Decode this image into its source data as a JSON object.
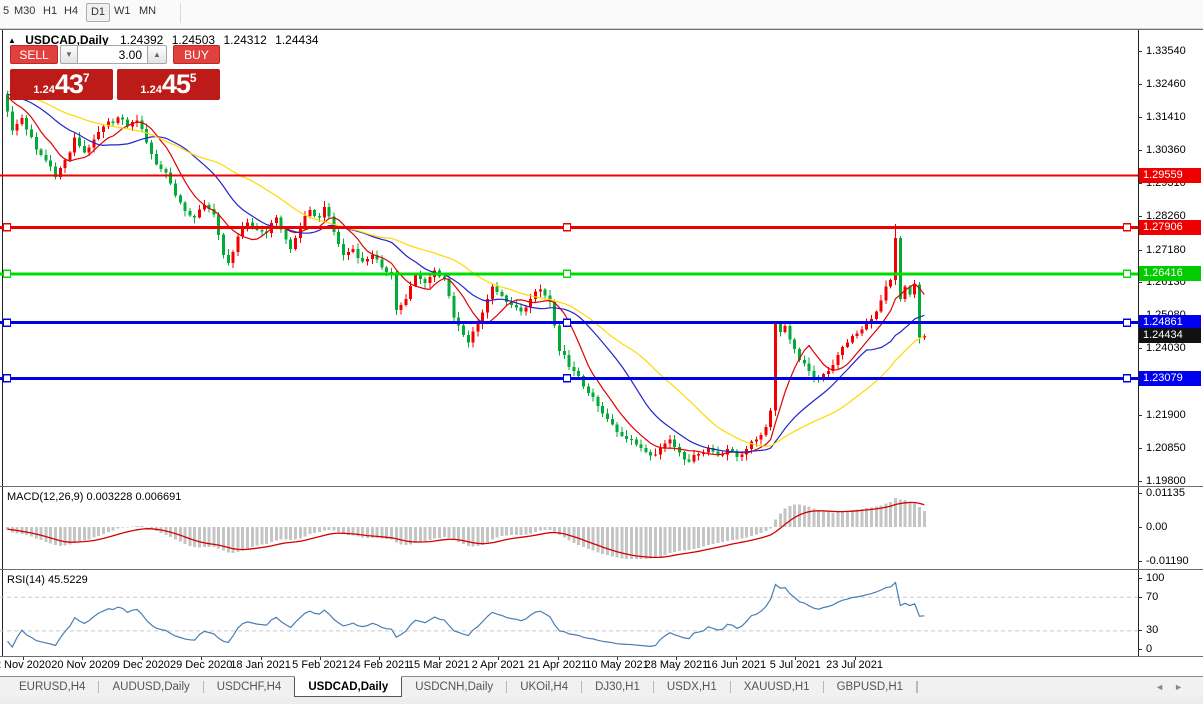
{
  "toolbar": {
    "timeframes": [
      {
        "label": "5",
        "active": false
      },
      {
        "label": "M30",
        "active": false
      },
      {
        "label": "H1",
        "active": false
      },
      {
        "label": "H4",
        "active": false
      },
      {
        "label": "D1",
        "active": true
      },
      {
        "label": "W1",
        "active": false
      },
      {
        "label": "MN",
        "active": false
      }
    ]
  },
  "chart_header": {
    "collapse_icon": "▲",
    "title": "USDCAD,Daily",
    "open": "1.24392",
    "high": "1.24503",
    "low": "1.24312",
    "close": "1.24434"
  },
  "trade_panel": {
    "sell_label": "SELL",
    "buy_label": "BUY",
    "volume": "3.00",
    "down_icon": "▼",
    "up_icon": "▲",
    "sell_price_prefix": "1.24",
    "sell_price_main": "43",
    "sell_price_sup": "7",
    "buy_price_prefix": "1.24",
    "buy_price_main": "45",
    "buy_price_sup": "5"
  },
  "colors": {
    "bull": "#f40000",
    "bear": "#00ac35",
    "macd_hist": "#c5c5c5",
    "macd_signal": "#d40000",
    "rsi_line": "#4a7eb5"
  },
  "price_axis": {
    "labels": [
      "1.33540",
      "1.32460",
      "1.31410",
      "1.30360",
      "1.29310",
      "1.28260",
      "1.27180",
      "1.26130",
      "1.25080",
      "1.24030",
      "1.22980",
      "1.21900",
      "1.20850",
      "1.19800"
    ],
    "badges": [
      {
        "text": "1.29559",
        "bg": "#ee0000"
      },
      {
        "text": "1.27906",
        "bg": "#ee0000"
      },
      {
        "text": "1.26416",
        "bg": "#00cc00"
      },
      {
        "text": "1.24861",
        "bg": "#0000ee"
      },
      {
        "text": "1.24434",
        "bg": "#111111"
      },
      {
        "text": "1.23079",
        "bg": "#0000ee"
      }
    ]
  },
  "date_axis": {
    "labels": [
      "2 Nov 2020",
      "20 Nov 2020",
      "9 Dec 2020",
      "29 Dec 2020",
      "18 Jan 2021",
      "5 Feb 2021",
      "24 Feb 2021",
      "15 Mar 2021",
      "2 Apr 2021",
      "21 Apr 2021",
      "10 May 2021",
      "28 May 2021",
      "16 Jun 2021",
      "5 Jul 2021",
      "23 Jul 2021"
    ]
  },
  "indicators": {
    "macd": {
      "label": "MACD(12,26,9)",
      "value_main": "0.003228",
      "value_signal": "0.006691",
      "axis_labels": [
        "0.01135",
        "0.00",
        "-0.01190"
      ]
    },
    "rsi": {
      "label": "RSI(14)",
      "value": "45.5229",
      "axis_labels": [
        "100",
        "70",
        "30",
        "0"
      ]
    }
  },
  "tabs": {
    "items": [
      {
        "label": "EURUSD,H4",
        "active": false
      },
      {
        "label": "AUDUSD,Daily",
        "active": false
      },
      {
        "label": "USDCHF,H4",
        "active": false
      },
      {
        "label": "USDCAD,Daily",
        "active": true
      },
      {
        "label": "USDCNH,Daily",
        "active": false
      },
      {
        "label": "UKOil,H4",
        "active": false
      },
      {
        "label": "DJ30,H1",
        "active": false
      },
      {
        "label": "USDX,H1",
        "active": false
      },
      {
        "label": "XAUUSD,H1",
        "active": false
      },
      {
        "label": "GBPUSD,H1",
        "active": false
      }
    ],
    "scroll_left": "◄",
    "scroll_right": "►"
  },
  "chart_data": {
    "type": "candlestick",
    "symbol": "USDCAD",
    "timeframe": "Daily",
    "current_ohlc": {
      "open": 1.24392,
      "high": 1.24503,
      "low": 1.24312,
      "close": 1.24434
    },
    "y_axis": {
      "min": 1.198,
      "max": 1.3354,
      "tick_step": 0.0105
    },
    "num_candles": 192,
    "wiggle": 0.0018,
    "close_path_anchors": [
      [
        0,
        1.316
      ],
      [
        1,
        1.31
      ],
      [
        3,
        1.314
      ],
      [
        6,
        1.304
      ],
      [
        9,
        1.2985
      ],
      [
        10,
        1.2952
      ],
      [
        13,
        1.303
      ],
      [
        14,
        1.3078
      ],
      [
        16,
        1.303
      ],
      [
        18,
        1.3072
      ],
      [
        20,
        1.3112
      ],
      [
        23,
        1.3142
      ],
      [
        25,
        1.3112
      ],
      [
        27,
        1.3132
      ],
      [
        29,
        1.3062
      ],
      [
        31,
        1.2992
      ],
      [
        33,
        1.2966
      ],
      [
        35,
        1.2892
      ],
      [
        37,
        1.2842
      ],
      [
        39,
        1.2822
      ],
      [
        41,
        1.2862
      ],
      [
        43,
        1.2832
      ],
      [
        45,
        1.2702
      ],
      [
        46,
        1.2676
      ],
      [
        48,
        1.2762
      ],
      [
        50,
        1.2806
      ],
      [
        52,
        1.2782
      ],
      [
        54,
        1.2772
      ],
      [
        56,
        1.2822
      ],
      [
        58,
        1.2752
      ],
      [
        59,
        1.2722
      ],
      [
        61,
        1.2792
      ],
      [
        63,
        1.2846
      ],
      [
        65,
        1.2822
      ],
      [
        66,
        1.2856
      ],
      [
        68,
        1.2776
      ],
      [
        70,
        1.2702
      ],
      [
        72,
        1.2722
      ],
      [
        74,
        1.2682
      ],
      [
        76,
        1.2702
      ],
      [
        78,
        1.2662
      ],
      [
        80,
        1.2642
      ],
      [
        81,
        1.2526
      ],
      [
        83,
        1.2562
      ],
      [
        85,
        1.2636
      ],
      [
        87,
        1.2612
      ],
      [
        89,
        1.2652
      ],
      [
        91,
        1.2626
      ],
      [
        93,
        1.2502
      ],
      [
        95,
        1.2446
      ],
      [
        96,
        1.2422
      ],
      [
        98,
        1.2482
      ],
      [
        100,
        1.2562
      ],
      [
        101,
        1.2602
      ],
      [
        103,
        1.2572
      ],
      [
        105,
        1.2542
      ],
      [
        107,
        1.2522
      ],
      [
        109,
        1.2562
      ],
      [
        111,
        1.2592
      ],
      [
        113,
        1.2552
      ],
      [
        115,
        1.2396
      ],
      [
        118,
        1.2332
      ],
      [
        121,
        1.2262
      ],
      [
        124,
        1.2196
      ],
      [
        127,
        1.2136
      ],
      [
        130,
        1.2112
      ],
      [
        132,
        1.2086
      ],
      [
        134,
        1.2062
      ],
      [
        136,
        1.2086
      ],
      [
        138,
        1.2112
      ],
      [
        140,
        1.2072
      ],
      [
        142,
        1.2042
      ],
      [
        144,
        1.2066
      ],
      [
        146,
        1.2086
      ],
      [
        148,
        1.2062
      ],
      [
        150,
        1.2082
      ],
      [
        152,
        1.2056
      ],
      [
        154,
        1.2082
      ],
      [
        156,
        1.2112
      ],
      [
        158,
        1.2152
      ],
      [
        159,
        1.2206
      ],
      [
        160,
        1.2482
      ],
      [
        161,
        1.2456
      ],
      [
        162,
        1.2476
      ],
      [
        163,
        1.2432
      ],
      [
        164,
        1.2402
      ],
      [
        165,
        1.2366
      ],
      [
        167,
        1.2332
      ],
      [
        169,
        1.2302
      ],
      [
        171,
        1.2332
      ],
      [
        173,
        1.2382
      ],
      [
        175,
        1.2422
      ],
      [
        177,
        1.2452
      ],
      [
        179,
        1.2482
      ],
      [
        181,
        1.2522
      ],
      [
        182,
        1.2556
      ],
      [
        183,
        1.2602
      ],
      [
        184,
        1.2622
      ],
      [
        185,
        1.2756
      ],
      [
        186,
        1.2562
      ],
      [
        187,
        1.2602
      ],
      [
        188,
        1.2576
      ],
      [
        189,
        1.2608
      ],
      [
        190,
        1.2438
      ],
      [
        191,
        1.24434
      ]
    ],
    "special_wicks": [
      [
        185,
        "high",
        1.2801
      ],
      [
        190,
        "low",
        1.2419
      ]
    ],
    "moving_averages": [
      {
        "name": "fast",
        "period": 8,
        "color": "#e00000"
      },
      {
        "name": "medium",
        "period": 20,
        "color": "#2424c8"
      },
      {
        "name": "slow",
        "period": 34,
        "color": "#ffd900"
      }
    ],
    "horizontal_lines": [
      {
        "price": 1.29559,
        "color": "#ee0000",
        "selected": false
      },
      {
        "price": 1.27906,
        "color": "#ee0000",
        "selected": true
      },
      {
        "price": 1.26416,
        "color": "#00dc00",
        "selected": true
      },
      {
        "price": 1.24861,
        "color": "#0000e6",
        "selected": true
      },
      {
        "price": 1.23079,
        "color": "#0000e6",
        "selected": true
      }
    ],
    "indicator_values": {
      "macd": {
        "params": [
          12,
          26,
          9
        ],
        "main": 0.003228,
        "signal": 0.006691,
        "axis_ticks": [
          0.01135,
          0,
          -0.0119
        ]
      },
      "rsi": {
        "period": 14,
        "value": 45.5229,
        "levels": [
          70,
          30
        ],
        "axis_ticks": [
          100,
          70,
          30,
          0
        ]
      }
    }
  }
}
